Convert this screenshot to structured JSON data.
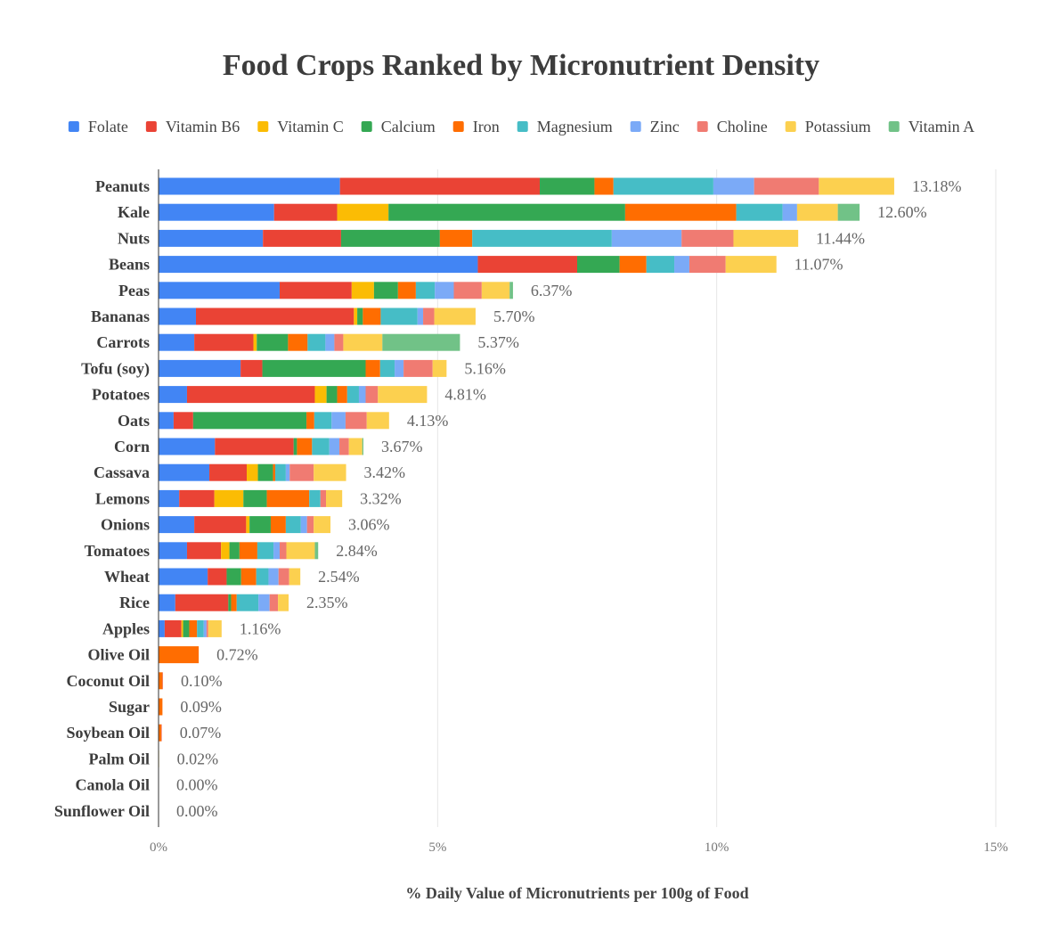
{
  "chart_data": {
    "type": "bar",
    "orientation": "horizontal",
    "stacked": true,
    "title": "Food Crops Ranked by Micronutrient Density",
    "xlabel": "% Daily Value of Micronutrients per 100g of Food",
    "ylabel": "",
    "xlim": [
      0,
      15
    ],
    "xticks": [
      {
        "value": 0,
        "label": "0%"
      },
      {
        "value": 5,
        "label": "5%"
      },
      {
        "value": 10,
        "label": "10%"
      },
      {
        "value": 15,
        "label": "15%"
      }
    ],
    "legend_position": "top",
    "categories": [
      "Peanuts",
      "Kale",
      "Nuts",
      "Beans",
      "Peas",
      "Bananas",
      "Carrots",
      "Tofu (soy)",
      "Potatoes",
      "Oats",
      "Corn",
      "Cassava",
      "Lemons",
      "Onions",
      "Tomatoes",
      "Wheat",
      "Rice",
      "Apples",
      "Olive Oil",
      "Coconut Oil",
      "Sugar",
      "Soybean Oil",
      "Palm Oil",
      "Canola Oil",
      "Sunflower Oil"
    ],
    "totals": [
      "13.18%",
      "12.60%",
      "11.44%",
      "11.07%",
      "6.37%",
      "5.70%",
      "5.37%",
      "5.16%",
      "4.81%",
      "4.13%",
      "3.67%",
      "3.42%",
      "3.32%",
      "3.06%",
      "2.84%",
      "2.54%",
      "2.35%",
      "1.16%",
      "0.72%",
      "0.10%",
      "0.09%",
      "0.07%",
      "0.02%",
      "0.00%",
      "0.00%"
    ],
    "series": [
      {
        "name": "Folate",
        "color": "#4285f4",
        "values": [
          3.25,
          2.07,
          1.87,
          5.72,
          2.17,
          0.67,
          0.64,
          1.47,
          0.51,
          0.27,
          1.01,
          0.91,
          0.37,
          0.64,
          0.51,
          0.88,
          0.3,
          0.11,
          0,
          0,
          0,
          0,
          0,
          0,
          0
        ]
      },
      {
        "name": "Vitamin B6",
        "color": "#ea4335",
        "values": [
          3.58,
          1.13,
          1.4,
          1.78,
          1.29,
          2.83,
          1.06,
          0.39,
          2.29,
          0.35,
          1.41,
          0.67,
          0.63,
          0.93,
          0.61,
          0.34,
          0.95,
          0.3,
          0,
          0,
          0,
          0,
          0,
          0,
          0
        ]
      },
      {
        "name": "Vitamin C",
        "color": "#fbbc04",
        "values": [
          0,
          0.92,
          0,
          0,
          0.4,
          0.06,
          0.06,
          0,
          0.21,
          0,
          0,
          0.2,
          0.52,
          0.06,
          0.15,
          0,
          0,
          0.03,
          0,
          0,
          0,
          0,
          0,
          0,
          0
        ]
      },
      {
        "name": "Calcium",
        "color": "#34a853",
        "values": [
          0.98,
          4.24,
          1.77,
          0.76,
          0.43,
          0.1,
          0.56,
          1.85,
          0.19,
          2.03,
          0.06,
          0.27,
          0.42,
          0.38,
          0.18,
          0.26,
          0.05,
          0.11,
          0,
          0,
          0,
          0,
          0,
          0,
          0
        ]
      },
      {
        "name": "Iron",
        "color": "#ff6d01",
        "values": [
          0.34,
          1.99,
          0.58,
          0.48,
          0.32,
          0.32,
          0.35,
          0.26,
          0.18,
          0.14,
          0.27,
          0.04,
          0.76,
          0.27,
          0.32,
          0.27,
          0.1,
          0.14,
          0.72,
          0.07,
          0.07,
          0.05,
          0,
          0,
          0
        ]
      },
      {
        "name": "Magnesium",
        "color": "#46bdc6",
        "values": [
          1.79,
          0.83,
          2.5,
          0.5,
          0.34,
          0.66,
          0.32,
          0.26,
          0.21,
          0.31,
          0.31,
          0.19,
          0.2,
          0.27,
          0.29,
          0.22,
          0.39,
          0.12,
          0,
          0,
          0,
          0,
          0,
          0,
          0
        ]
      },
      {
        "name": "Zinc",
        "color": "#7baaf7",
        "values": [
          0.73,
          0.26,
          1.25,
          0.27,
          0.34,
          0.1,
          0.16,
          0.16,
          0.12,
          0.25,
          0.18,
          0.07,
          0,
          0.11,
          0.11,
          0.18,
          0.2,
          0.05,
          0,
          0,
          0,
          0,
          0,
          0,
          0
        ]
      },
      {
        "name": "Choline",
        "color": "#f07b72",
        "values": [
          1.16,
          0,
          0.93,
          0.65,
          0.5,
          0.2,
          0.16,
          0.52,
          0.22,
          0.38,
          0.17,
          0.43,
          0.1,
          0.12,
          0.12,
          0.19,
          0.15,
          0.03,
          0,
          0.01,
          0,
          0.01,
          0,
          0,
          0
        ]
      },
      {
        "name": "Potassium",
        "color": "#fcd04f",
        "values": [
          1.35,
          0.73,
          1.16,
          0.91,
          0.5,
          0.74,
          0.7,
          0.25,
          0.88,
          0.4,
          0.24,
          0.58,
          0.29,
          0.3,
          0.51,
          0.2,
          0.19,
          0.24,
          0,
          0,
          0,
          0,
          0.01,
          0,
          0
        ]
      },
      {
        "name": "Vitamin A",
        "color": "#71c287",
        "values": [
          0,
          0.39,
          0,
          0,
          0.06,
          0,
          1.39,
          0,
          0,
          0,
          0.02,
          0,
          0,
          0,
          0.06,
          0,
          0,
          0,
          0,
          0,
          0,
          0,
          0,
          0,
          0
        ]
      }
    ]
  }
}
